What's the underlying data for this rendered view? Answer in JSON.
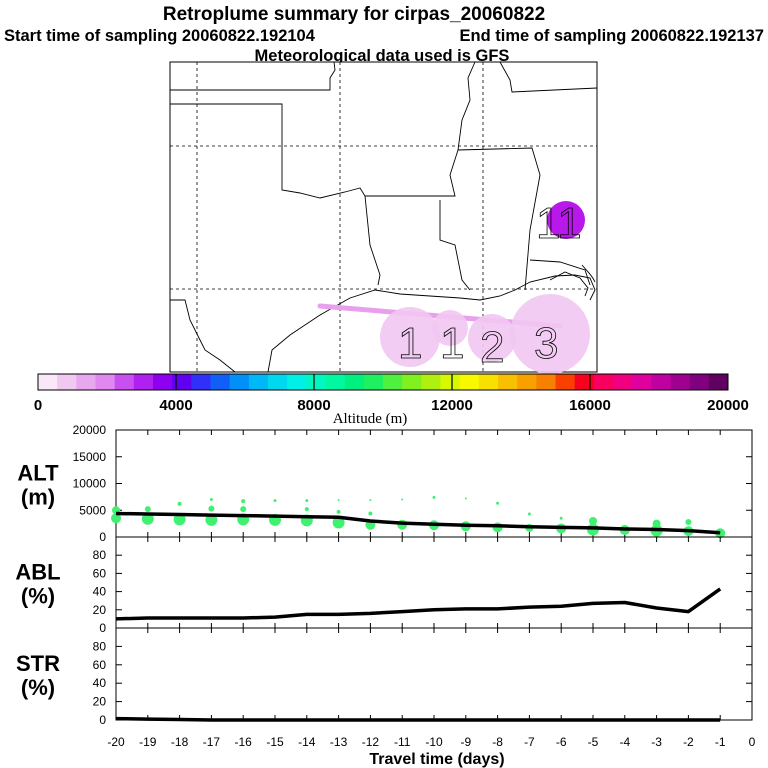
{
  "header": {
    "title": "Retroplume summary for cirpas_20060822",
    "start_label": "Start time of sampling 20060822.192104",
    "end_label": "End time of sampling 20060822.192137",
    "met_label": "Meteorological data used is GFS"
  },
  "map": {
    "plume_color": "#e8a0ec",
    "cluster_color": "#f2c6f2",
    "high_cluster_color": "#b000e8",
    "cluster_labels": [
      {
        "text": "1",
        "kind": "low"
      },
      {
        "text": "1",
        "kind": "low"
      },
      {
        "text": "2",
        "kind": "low"
      },
      {
        "text": "3",
        "kind": "low"
      },
      {
        "text": "11",
        "kind": "high"
      }
    ]
  },
  "colorbar": {
    "title": "Altitude (m)",
    "min": 0,
    "max": 20000,
    "tick_labels": [
      "0",
      "4000",
      "8000",
      "12000",
      "16000",
      "20000"
    ],
    "colors": [
      "#f8e8f8",
      "#f0c8f0",
      "#e8a8f0",
      "#e088f0",
      "#c850f0",
      "#b020f0",
      "#9000f0",
      "#6000f0",
      "#3030f8",
      "#1060f8",
      "#0090f8",
      "#00b8f8",
      "#00d8f0",
      "#00f0e8",
      "#00f8c0",
      "#00f8a0",
      "#00f080",
      "#20f060",
      "#50f040",
      "#80f020",
      "#b0f010",
      "#d8f800",
      "#f8f800",
      "#f8e000",
      "#f8c000",
      "#f8a000",
      "#f88000",
      "#f84000",
      "#f80020",
      "#f80060",
      "#f00080",
      "#e000a0",
      "#c000a0",
      "#a00090",
      "#800080",
      "#600060"
    ]
  },
  "chart_data": {
    "type": "line",
    "xlabel": "Travel time (days)",
    "xlim": [
      -20,
      0
    ],
    "x_tick_labels": [
      "-20",
      "-19",
      "-18",
      "-17",
      "-16",
      "-15",
      "-14",
      "-13",
      "-12",
      "-11",
      "-10",
      "-9",
      "-8",
      "-7",
      "-6",
      "-5",
      "-4",
      "-3",
      "-2",
      "-1",
      "0"
    ],
    "panels": [
      {
        "id": "alt",
        "ylabel_line1": "ALT",
        "ylabel_line2": "(m)",
        "ylim": [
          0,
          20000
        ],
        "y_tick_labels": [
          "0",
          "5000",
          "10000",
          "15000",
          "20000"
        ],
        "y_tick_values": [
          0,
          5000,
          10000,
          15000,
          20000
        ],
        "series": [
          {
            "name": "mean altitude",
            "x": [
              -20,
              -19,
              -18,
              -17,
              -16,
              -15,
              -14,
              -13,
              -12,
              -11,
              -10,
              -9,
              -8,
              -7,
              -6,
              -5,
              -4,
              -3,
              -2,
              -1
            ],
            "y": [
              4400,
              4300,
              4200,
              4100,
              4000,
              3900,
              3800,
              3700,
              3000,
              2600,
              2400,
              2200,
              2100,
              1900,
              1800,
              1700,
              1500,
              1400,
              1200,
              800
            ]
          }
        ],
        "scatter": {
          "name": "cluster altitudes",
          "color": "#40f070",
          "points": [
            {
              "x": -20,
              "y": 3500,
              "r": 5
            },
            {
              "x": -20,
              "y": 5000,
              "r": 4
            },
            {
              "x": -19,
              "y": 3400,
              "r": 6
            },
            {
              "x": -19,
              "y": 5200,
              "r": 3
            },
            {
              "x": -18,
              "y": 3300,
              "r": 6
            },
            {
              "x": -18,
              "y": 6200,
              "r": 2
            },
            {
              "x": -17,
              "y": 3200,
              "r": 6
            },
            {
              "x": -17,
              "y": 5300,
              "r": 3
            },
            {
              "x": -17,
              "y": 7000,
              "r": 1.5
            },
            {
              "x": -16,
              "y": 3300,
              "r": 6
            },
            {
              "x": -16,
              "y": 5200,
              "r": 3
            },
            {
              "x": -16,
              "y": 6700,
              "r": 2
            },
            {
              "x": -15,
              "y": 3200,
              "r": 6
            },
            {
              "x": -15,
              "y": 6800,
              "r": 1.5
            },
            {
              "x": -14,
              "y": 3100,
              "r": 6
            },
            {
              "x": -14,
              "y": 5200,
              "r": 2
            },
            {
              "x": -14,
              "y": 6800,
              "r": 1.5
            },
            {
              "x": -13,
              "y": 2700,
              "r": 6
            },
            {
              "x": -13,
              "y": 4700,
              "r": 2
            },
            {
              "x": -13,
              "y": 6900,
              "r": 1
            },
            {
              "x": -12,
              "y": 2300,
              "r": 5
            },
            {
              "x": -12,
              "y": 4400,
              "r": 2
            },
            {
              "x": -12,
              "y": 6900,
              "r": 1
            },
            {
              "x": -11,
              "y": 2300,
              "r": 5
            },
            {
              "x": -11,
              "y": 7000,
              "r": 1
            },
            {
              "x": -10,
              "y": 2200,
              "r": 5
            },
            {
              "x": -10,
              "y": 7400,
              "r": 1.5
            },
            {
              "x": -9,
              "y": 2000,
              "r": 5
            },
            {
              "x": -9,
              "y": 7200,
              "r": 1
            },
            {
              "x": -8,
              "y": 1800,
              "r": 5
            },
            {
              "x": -8,
              "y": 6300,
              "r": 1.5
            },
            {
              "x": -7,
              "y": 1700,
              "r": 4
            },
            {
              "x": -7,
              "y": 4300,
              "r": 1.5
            },
            {
              "x": -6,
              "y": 1600,
              "r": 5
            },
            {
              "x": -6,
              "y": 3500,
              "r": 1.5
            },
            {
              "x": -5,
              "y": 1400,
              "r": 6
            },
            {
              "x": -5,
              "y": 3000,
              "r": 4
            },
            {
              "x": -4,
              "y": 1300,
              "r": 5
            },
            {
              "x": -3,
              "y": 1200,
              "r": 6
            },
            {
              "x": -3,
              "y": 2500,
              "r": 4
            },
            {
              "x": -2,
              "y": 1100,
              "r": 5
            },
            {
              "x": -2,
              "y": 2800,
              "r": 3
            },
            {
              "x": -1,
              "y": 700,
              "r": 5
            }
          ]
        }
      },
      {
        "id": "abl",
        "ylabel_line1": "ABL",
        "ylabel_line2": "(%)",
        "ylim": [
          0,
          100
        ],
        "y_tick_labels": [
          "0",
          "20",
          "40",
          "60",
          "80"
        ],
        "y_tick_values": [
          0,
          20,
          40,
          60,
          80
        ],
        "series": [
          {
            "name": "boundary layer fraction",
            "x": [
              -20,
              -19,
              -18,
              -17,
              -16,
              -15,
              -14,
              -13,
              -12,
              -11,
              -10,
              -9,
              -8,
              -7,
              -6,
              -5,
              -4,
              -3,
              -2,
              -1
            ],
            "y": [
              10,
              11,
              11,
              11,
              11,
              12,
              15,
              15,
              16,
              18,
              20,
              21,
              21,
              23,
              24,
              27,
              28,
              22,
              18,
              43
            ]
          }
        ]
      },
      {
        "id": "str",
        "ylabel_line1": "STR",
        "ylabel_line2": "(%)",
        "ylim": [
          0,
          100
        ],
        "y_tick_labels": [
          "0",
          "20",
          "40",
          "60",
          "80"
        ],
        "y_tick_values": [
          0,
          20,
          40,
          60,
          80
        ],
        "series": [
          {
            "name": "stratospheric fraction",
            "x": [
              -20,
              -19,
              -18,
              -17,
              -16,
              -15,
              -14,
              -13,
              -12,
              -11,
              -10,
              -9,
              -8,
              -7,
              -6,
              -5,
              -4,
              -3,
              -2,
              -1
            ],
            "y": [
              1.5,
              1,
              0.5,
              0,
              0,
              0,
              0,
              0,
              0,
              0,
              0,
              0,
              0,
              0,
              0,
              0,
              0,
              0,
              0,
              0
            ]
          }
        ]
      }
    ]
  }
}
